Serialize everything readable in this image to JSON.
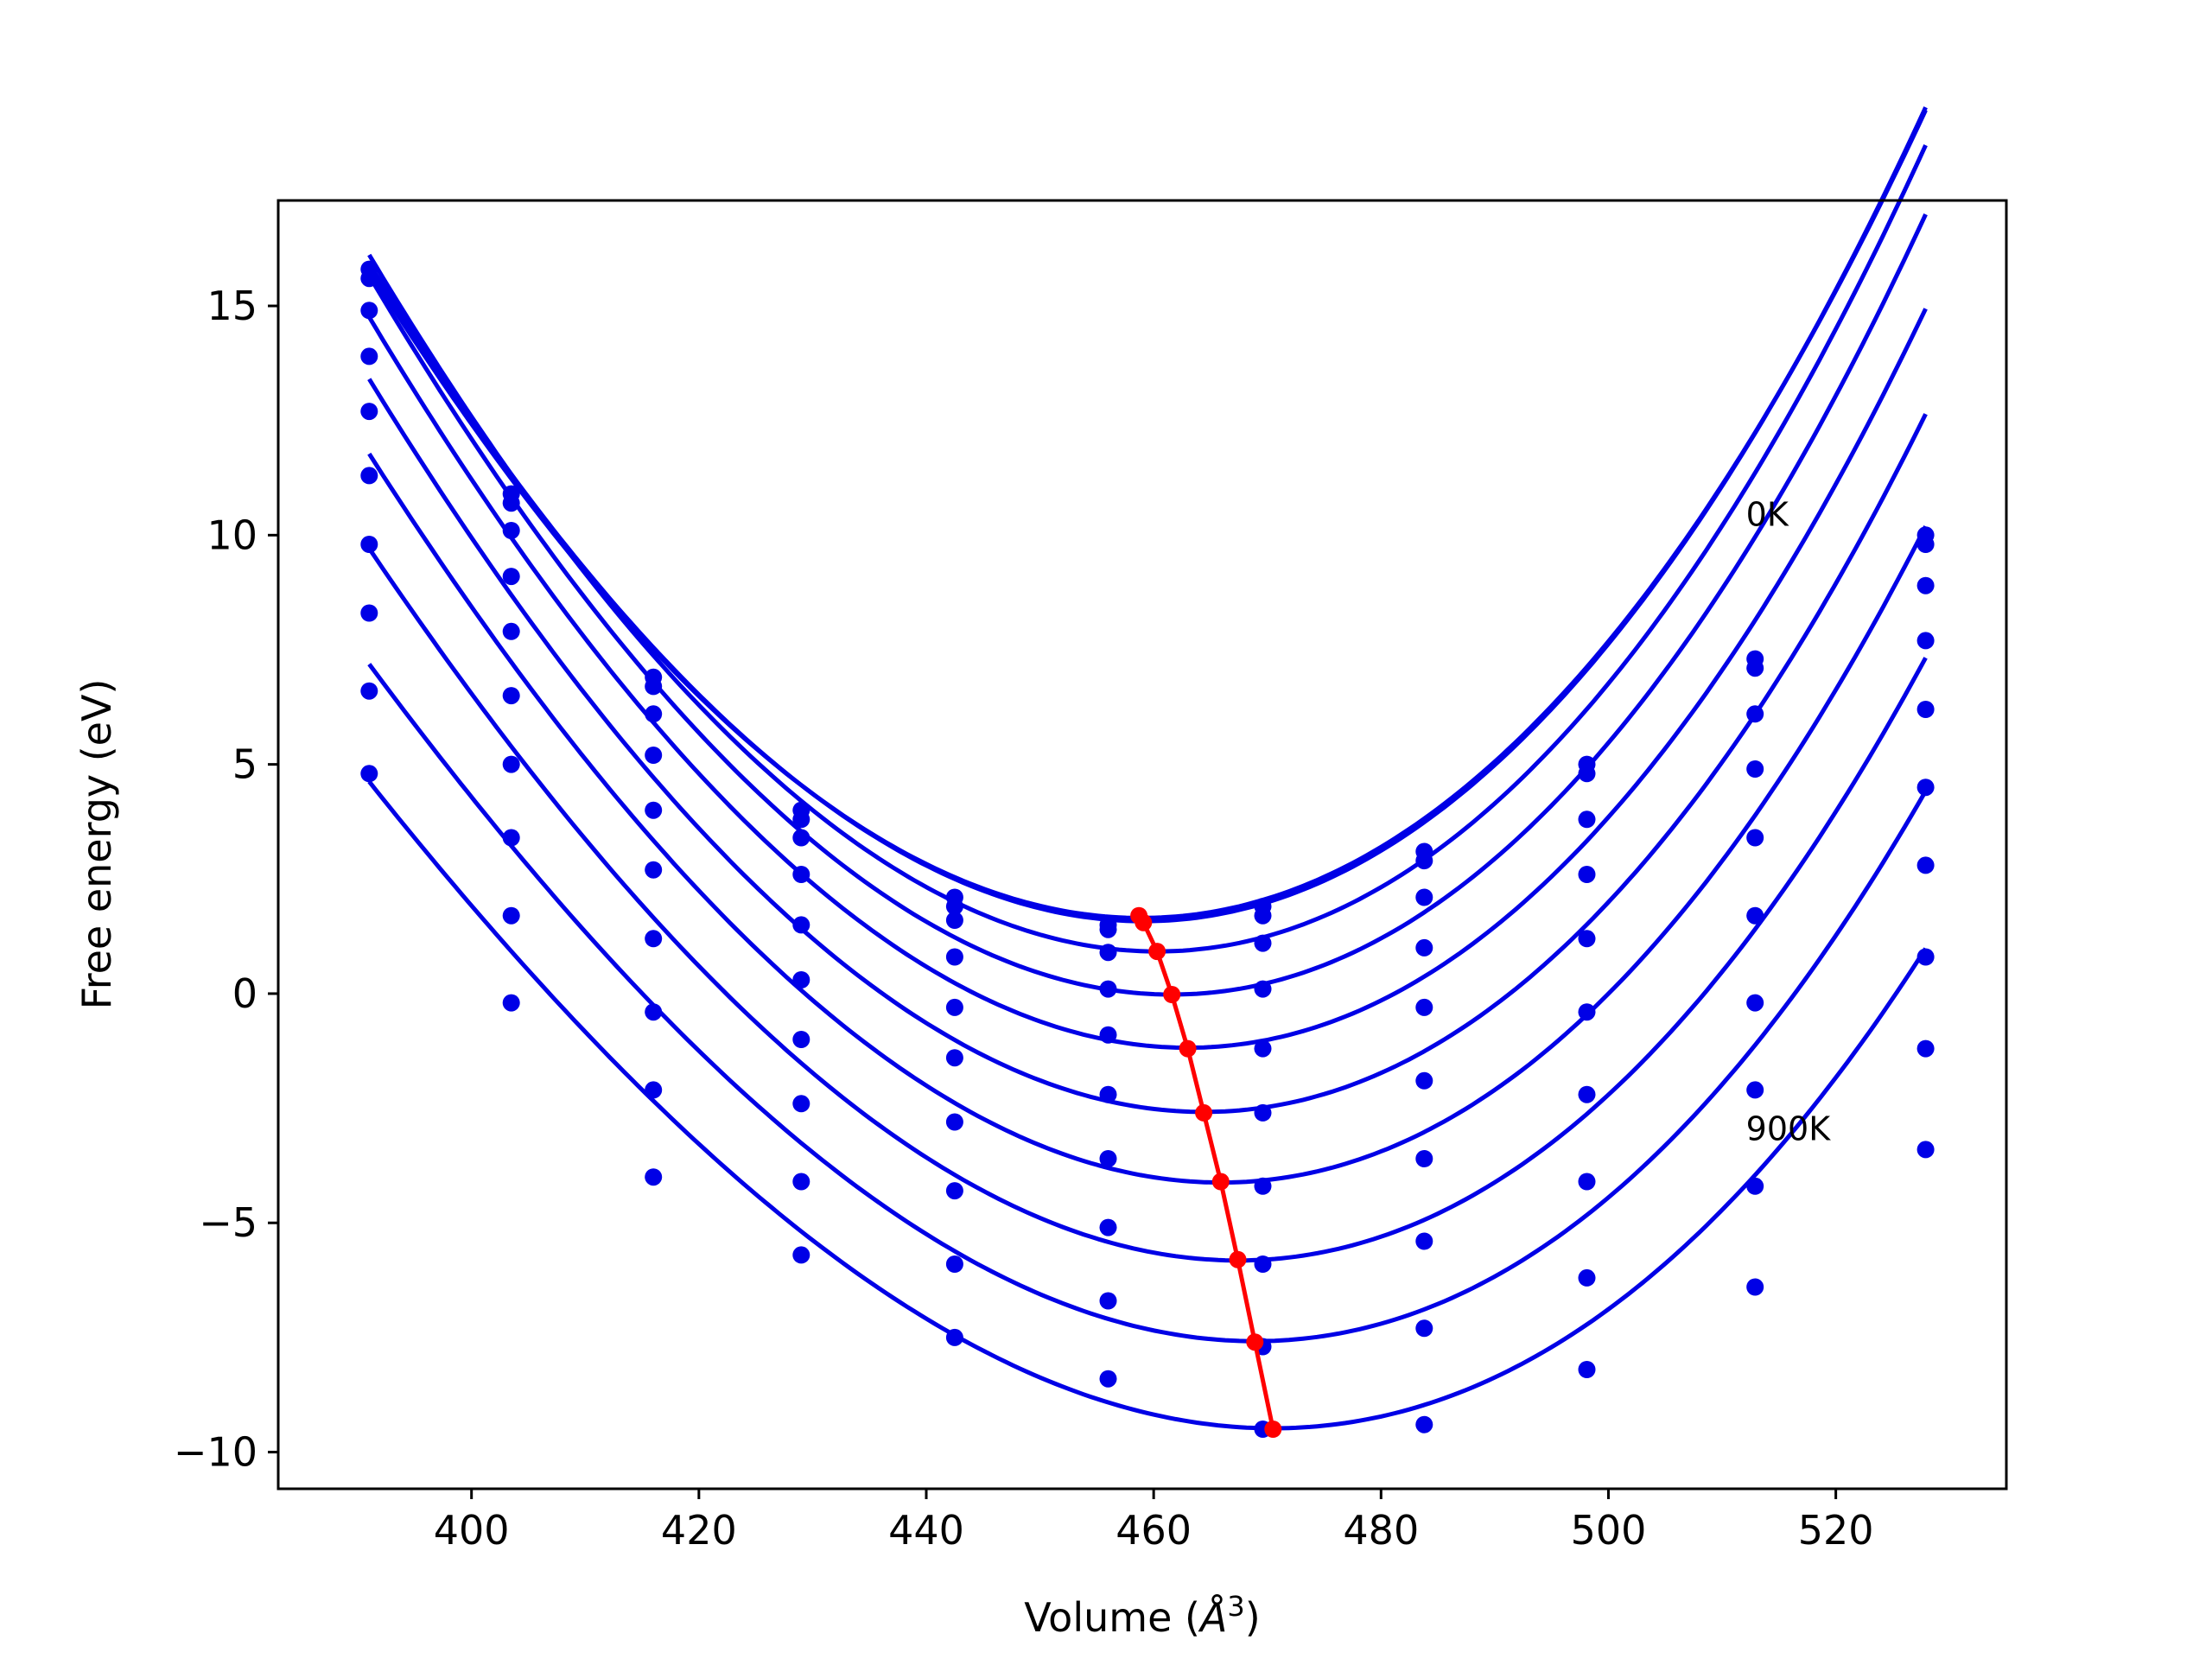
{
  "chart_data": {
    "type": "line",
    "xlabel": "Volume (",
    "xlabel_unit": "Å",
    "xlabel_power": "3",
    "xlabel_close": ")",
    "ylabel": "Free energy (eV)",
    "xlim": [
      383,
      535
    ],
    "ylim": [
      -10.8,
      17.3
    ],
    "x_ticks": [
      400,
      420,
      440,
      460,
      480,
      500,
      520
    ],
    "y_ticks": [
      -10,
      -5,
      0,
      5,
      10,
      15
    ],
    "grid": false,
    "annotations": [
      {
        "text": "0K",
        "x": 512.1,
        "y": 10.2
      },
      {
        "text": "900K",
        "x": 512.1,
        "y": -3.2
      }
    ],
    "fit_color": "#0000e6",
    "min_color": "#ff0000",
    "volumes": [
      391,
      403.5,
      416,
      429,
      442.5,
      456,
      469.6,
      483.8,
      498.1,
      512.9,
      527.9
    ],
    "curves": [
      {
        "Vmin": 458.9,
        "Fmin": 1.65,
        "a": 0.00338,
        "b": 4.65e-06
      },
      {
        "Vmin": 459.1,
        "Fmin": 1.58,
        "a": 0.00342,
        "b": 4.8e-06
      },
      {
        "Vmin": 460.3,
        "Fmin": 0.92,
        "a": 0.00351,
        "b": 5e-06
      },
      {
        "Vmin": 461.6,
        "Fmin": -0.02,
        "a": 0.00352,
        "b": 5.3e-06
      },
      {
        "Vmin": 463.0,
        "Fmin": -1.18,
        "a": 0.00347,
        "b": 5.5e-06
      },
      {
        "Vmin": 464.4,
        "Fmin": -2.58,
        "a": 0.0034,
        "b": 5.9e-06
      },
      {
        "Vmin": 465.9,
        "Fmin": -4.12,
        "a": 0.00332,
        "b": 6.5e-06
      },
      {
        "Vmin": 467.4,
        "Fmin": -5.82,
        "a": 0.00318,
        "b": 6.8e-06
      },
      {
        "Vmin": 468.9,
        "Fmin": -7.58,
        "a": 0.00301,
        "b": 7.4e-06
      },
      {
        "Vmin": 470.5,
        "Fmin": -9.48,
        "a": 0.00278,
        "b": 6.9e-06
      }
    ],
    "points": [
      [
        15.8,
        10.9,
        6.9,
        4.0,
        2.1,
        1.5,
        1.9,
        3.1,
        5.0,
        7.3,
        10.0
      ],
      [
        15.6,
        10.7,
        6.7,
        3.8,
        1.9,
        1.4,
        1.7,
        2.9,
        4.8,
        7.1,
        9.8
      ],
      [
        14.9,
        10.1,
        6.1,
        3.4,
        1.6,
        0.9,
        1.1,
        2.1,
        3.8,
        6.1,
        8.9
      ],
      [
        13.9,
        9.1,
        5.2,
        2.6,
        0.8,
        0.1,
        0.1,
        1.0,
        2.6,
        4.9,
        7.7
      ],
      [
        12.7,
        7.9,
        4.0,
        1.5,
        -0.3,
        -0.9,
        -1.2,
        -0.3,
        1.2,
        3.4,
        6.2
      ],
      [
        11.3,
        6.5,
        2.7,
        0.3,
        -1.4,
        -2.2,
        -2.6,
        -1.9,
        -0.4,
        1.7,
        4.5
      ],
      [
        9.8,
        5.0,
        1.2,
        -1.0,
        -2.8,
        -3.6,
        -4.2,
        -3.6,
        -2.2,
        -0.2,
        2.8
      ],
      [
        8.3,
        3.4,
        -0.4,
        -2.4,
        -4.3,
        -5.1,
        -5.9,
        -5.4,
        -4.1,
        -2.1,
        0.8
      ],
      [
        6.6,
        1.7,
        -2.1,
        -4.1,
        -5.9,
        -6.7,
        -7.7,
        -7.3,
        -6.2,
        -4.2,
        -1.2
      ],
      [
        4.8,
        -0.2,
        -4.0,
        -5.7,
        -7.5,
        -8.4,
        -9.5,
        -9.4,
        -8.2,
        -6.4,
        -3.4
      ]
    ],
    "min_line": {
      "x": [
        458.7,
        459.1,
        460.3,
        461.6,
        463.0,
        464.4,
        465.9,
        467.4,
        468.9,
        470.5
      ],
      "y": [
        1.7,
        1.55,
        0.92,
        -0.02,
        -1.2,
        -2.6,
        -4.1,
        -5.8,
        -7.6,
        -9.5
      ]
    }
  }
}
